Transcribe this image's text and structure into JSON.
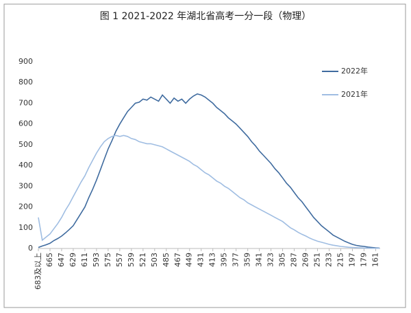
{
  "chart_data": {
    "type": "line",
    "title": "图 1 2021-2022 年湖北省高考一分一段（物理）",
    "x": [
      683,
      677,
      671,
      665,
      659,
      653,
      647,
      641,
      635,
      629,
      623,
      617,
      611,
      605,
      599,
      593,
      587,
      581,
      575,
      569,
      563,
      557,
      551,
      545,
      539,
      533,
      527,
      521,
      515,
      509,
      503,
      497,
      491,
      485,
      479,
      473,
      467,
      461,
      455,
      449,
      443,
      437,
      431,
      425,
      419,
      413,
      407,
      401,
      395,
      389,
      383,
      377,
      371,
      365,
      359,
      353,
      347,
      341,
      335,
      329,
      323,
      317,
      311,
      305,
      299,
      293,
      287,
      281,
      275,
      269,
      263,
      257,
      251,
      245,
      239,
      233,
      227,
      221,
      215,
      209,
      203,
      197,
      191,
      185,
      179,
      173,
      167,
      161,
      155
    ],
    "series": [
      {
        "name": "2022年",
        "color": "#3f6b9f",
        "values": [
          5,
          12,
          18,
          25,
          38,
          48,
          60,
          75,
          92,
          110,
          140,
          170,
          200,
          245,
          285,
          330,
          380,
          430,
          480,
          520,
          565,
          600,
          630,
          660,
          680,
          700,
          705,
          720,
          715,
          730,
          720,
          710,
          740,
          720,
          700,
          725,
          710,
          720,
          700,
          720,
          735,
          745,
          740,
          730,
          715,
          700,
          680,
          665,
          650,
          630,
          615,
          600,
          580,
          560,
          540,
          515,
          495,
          470,
          450,
          430,
          410,
          385,
          365,
          340,
          315,
          295,
          270,
          245,
          225,
          200,
          175,
          150,
          130,
          110,
          95,
          80,
          65,
          55,
          45,
          35,
          27,
          20,
          15,
          12,
          10,
          7,
          5,
          3,
          2
        ]
      },
      {
        "name": "2021年",
        "color": "#9fbde2",
        "values": [
          150,
          40,
          55,
          70,
          95,
          120,
          150,
          185,
          215,
          250,
          285,
          320,
          350,
          390,
          425,
          460,
          490,
          515,
          530,
          540,
          545,
          540,
          545,
          540,
          530,
          525,
          515,
          510,
          505,
          505,
          500,
          495,
          490,
          480,
          470,
          460,
          450,
          440,
          430,
          420,
          405,
          395,
          380,
          365,
          355,
          340,
          325,
          315,
          300,
          290,
          275,
          260,
          245,
          235,
          220,
          210,
          200,
          190,
          180,
          170,
          160,
          150,
          140,
          130,
          115,
          100,
          90,
          78,
          68,
          60,
          50,
          42,
          35,
          30,
          25,
          20,
          16,
          13,
          10,
          8,
          6,
          5,
          4,
          3,
          2,
          2,
          1,
          1,
          1
        ]
      }
    ],
    "xlim": [
      683,
      154
    ],
    "xticks": [
      {
        "value": 683,
        "label": "683及以上"
      },
      665,
      647,
      629,
      611,
      593,
      575,
      557,
      539,
      521,
      503,
      485,
      467,
      449,
      431,
      413,
      395,
      377,
      359,
      341,
      323,
      305,
      287,
      269,
      251,
      233,
      215,
      197,
      179,
      161
    ],
    "ylim": [
      0,
      900
    ],
    "yticks": [
      0,
      100,
      200,
      300,
      400,
      500,
      600,
      700,
      800,
      900
    ],
    "grid": false,
    "legend": "upper right"
  }
}
